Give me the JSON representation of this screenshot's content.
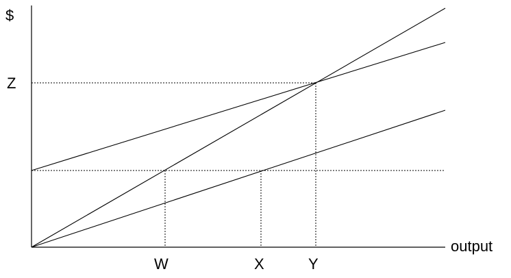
{
  "labels": {
    "y_axis": "$",
    "x_axis": "output",
    "z_mark": "Z",
    "w_mark": "W",
    "x_mark": "X",
    "y_mark": "Y"
  }
}
